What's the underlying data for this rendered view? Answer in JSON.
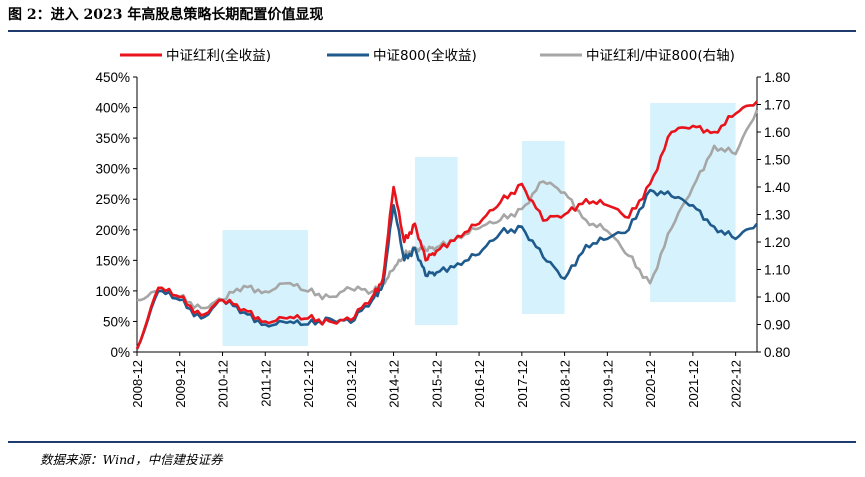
{
  "header": {
    "title": "图 2：进入 2023 年高股息策略长期配置价值显现"
  },
  "footer": {
    "source": "数据来源：Wind，中信建投证券"
  },
  "chart_data": {
    "type": "line",
    "title": "图 2：进入 2023 年高股息策略长期配置价值显现",
    "x": [
      "2008-12",
      "2009-06",
      "2009-12",
      "2010-06",
      "2010-12",
      "2011-06",
      "2011-12",
      "2012-06",
      "2012-12",
      "2013-06",
      "2013-12",
      "2014-06",
      "2014-09",
      "2014-12",
      "2015-03",
      "2015-06",
      "2015-09",
      "2015-12",
      "2016-06",
      "2016-12",
      "2017-06",
      "2017-12",
      "2018-06",
      "2018-12",
      "2019-06",
      "2019-12",
      "2020-06",
      "2020-12",
      "2021-06",
      "2021-12",
      "2022-06",
      "2022-12",
      "2023-06"
    ],
    "x_tick_labels": [
      "2008-12",
      "2009-12",
      "2010-12",
      "2011-12",
      "2012-12",
      "2013-12",
      "2014-12",
      "2015-12",
      "2016-12",
      "2017-12",
      "2018-12",
      "2019-12",
      "2020-12",
      "2021-12",
      "2022-12"
    ],
    "y_left": {
      "ticks": [
        "0%",
        "50%",
        "100%",
        "150%",
        "200%",
        "250%",
        "300%",
        "350%",
        "400%",
        "450%"
      ],
      "ylim": [
        0,
        450
      ]
    },
    "y_right": {
      "ticks": [
        "0.80",
        "0.90",
        "1.00",
        "1.10",
        "1.20",
        "1.30",
        "1.40",
        "1.50",
        "1.60",
        "1.70",
        "1.80"
      ],
      "ylim": [
        0.8,
        1.8
      ]
    },
    "series": [
      {
        "name": "中证红利(全收益)",
        "axis": "left",
        "color": "#e8131b",
        "values": [
          5,
          105,
          90,
          60,
          85,
          70,
          50,
          55,
          55,
          50,
          52,
          90,
          120,
          270,
          180,
          210,
          150,
          165,
          190,
          210,
          245,
          275,
          215,
          225,
          250,
          240,
          220,
          275,
          360,
          370,
          360,
          390,
          410
        ]
      },
      {
        "name": "中证800(全收益)",
        "axis": "left",
        "color": "#1f5a8c",
        "values": [
          5,
          100,
          85,
          55,
          85,
          65,
          45,
          48,
          45,
          55,
          48,
          85,
          110,
          240,
          150,
          170,
          125,
          130,
          145,
          160,
          195,
          205,
          155,
          120,
          175,
          185,
          200,
          265,
          255,
          240,
          205,
          185,
          210
        ]
      },
      {
        "name": "中证红利/中证800(右轴)",
        "axis": "right",
        "color": "#a6a6a6",
        "values": [
          0.99,
          1.02,
          1.0,
          0.96,
          0.99,
          1.04,
          1.02,
          1.05,
          1.02,
          1.0,
          1.03,
          1.02,
          1.05,
          1.1,
          1.15,
          1.18,
          1.17,
          1.18,
          1.22,
          1.25,
          1.28,
          1.32,
          1.42,
          1.38,
          1.28,
          1.24,
          1.15,
          1.05,
          1.25,
          1.4,
          1.55,
          1.52,
          1.68
        ]
      }
    ],
    "shaded_periods": [
      [
        "2010-12",
        "2012-12"
      ],
      [
        "2015-06",
        "2016-06"
      ],
      [
        "2017-12",
        "2018-12"
      ],
      [
        "2020-12",
        "2022-12"
      ]
    ],
    "shade_color": "#d6f3fd",
    "legend_position": "top",
    "grid": false
  }
}
